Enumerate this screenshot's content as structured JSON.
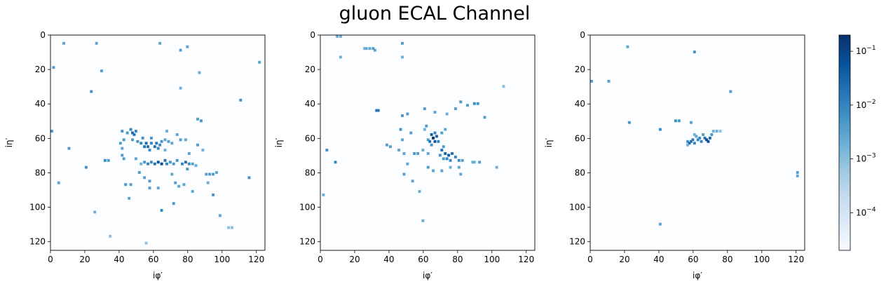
{
  "chart_data": {
    "type": "heatmap",
    "title": "gluon ECAL Channel",
    "cmap": "Blues",
    "colorbar": {
      "scale": "log",
      "range": [
        2e-05,
        0.2
      ],
      "tick_labels": [
        "10^-4",
        "10^-3",
        "10^-2",
        "10^-1"
      ],
      "tick_values": [
        0.0001,
        0.001,
        0.01,
        0.1
      ]
    },
    "panels": [
      {
        "xlabel": "iφ′",
        "ylabel": "iη′",
        "xlim": [
          0,
          125
        ],
        "ylim": [
          125,
          0
        ],
        "xticks": [
          0,
          20,
          40,
          60,
          80,
          100,
          120
        ],
        "yticks": [
          0,
          20,
          40,
          60,
          80,
          100,
          120
        ],
        "points": [
          [
            7,
            4,
            0.003
          ],
          [
            26,
            4,
            0.003
          ],
          [
            63,
            4,
            0.003
          ],
          [
            75,
            8,
            0.004
          ],
          [
            79,
            6,
            0.003
          ],
          [
            121,
            15,
            0.003
          ],
          [
            1,
            18,
            0.004
          ],
          [
            29,
            20,
            0.004
          ],
          [
            86,
            21,
            0.002
          ],
          [
            23,
            32,
            0.006
          ],
          [
            75,
            30,
            0.002
          ],
          [
            110,
            37,
            0.006
          ],
          [
            0,
            55,
            0.005
          ],
          [
            4,
            85,
            0.003
          ],
          [
            10,
            65,
            0.005
          ],
          [
            20,
            76,
            0.006
          ],
          [
            25,
            102,
            0.002
          ],
          [
            31,
            72,
            0.008
          ],
          [
            33,
            72,
            0.005
          ],
          [
            34,
            116,
            0.001
          ],
          [
            55,
            120,
            0.001
          ],
          [
            103,
            111,
            0.001
          ],
          [
            105,
            111,
            0.001
          ],
          [
            41,
            55,
            0.006
          ],
          [
            42,
            60,
            0.004
          ],
          [
            40,
            62,
            0.004
          ],
          [
            41,
            65,
            0.003
          ],
          [
            41,
            69,
            0.005
          ],
          [
            42,
            71,
            0.004
          ],
          [
            44,
            56,
            0.005
          ],
          [
            46,
            54,
            0.01
          ],
          [
            47,
            56,
            0.03
          ],
          [
            48,
            57,
            0.02
          ],
          [
            49,
            55,
            0.01
          ],
          [
            47,
            60,
            0.005
          ],
          [
            50,
            61,
            0.006
          ],
          [
            52,
            62,
            0.01
          ],
          [
            53,
            59,
            0.006
          ],
          [
            54,
            64,
            0.02
          ],
          [
            55,
            62,
            0.03
          ],
          [
            56,
            64,
            0.02
          ],
          [
            57,
            66,
            0.008
          ],
          [
            58,
            62,
            0.01
          ],
          [
            60,
            64,
            0.02
          ],
          [
            61,
            62,
            0.015
          ],
          [
            62,
            65,
            0.01
          ],
          [
            63,
            63,
            0.008
          ],
          [
            64,
            61,
            0.006
          ],
          [
            58,
            59,
            0.005
          ],
          [
            66,
            60,
            0.003
          ],
          [
            68,
            61,
            0.004
          ],
          [
            70,
            62,
            0.003
          ],
          [
            66,
            66,
            0.002
          ],
          [
            67,
            55,
            0.002
          ],
          [
            73,
            57,
            0.003
          ],
          [
            75,
            60,
            0.004
          ],
          [
            78,
            60,
            0.003
          ],
          [
            85,
            48,
            0.004
          ],
          [
            87,
            49,
            0.006
          ],
          [
            85,
            63,
            0.004
          ],
          [
            88,
            66,
            0.002
          ],
          [
            80,
            68,
            0.003
          ],
          [
            54,
            73,
            0.006
          ],
          [
            56,
            74,
            0.01
          ],
          [
            58,
            73,
            0.008
          ],
          [
            60,
            74,
            0.02
          ],
          [
            62,
            73,
            0.06
          ],
          [
            64,
            74,
            0.08
          ],
          [
            66,
            72,
            0.02
          ],
          [
            67,
            74,
            0.01
          ],
          [
            69,
            73,
            0.006
          ],
          [
            71,
            74,
            0.005
          ],
          [
            73,
            72,
            0.006
          ],
          [
            76,
            74,
            0.01
          ],
          [
            78,
            73,
            0.02
          ],
          [
            80,
            74,
            0.008
          ],
          [
            82,
            74,
            0.004
          ],
          [
            84,
            75,
            0.002
          ],
          [
            79,
            77,
            0.005
          ],
          [
            49,
            71,
            0.003
          ],
          [
            52,
            74,
            0.002
          ],
          [
            54,
            82,
            0.004
          ],
          [
            57,
            84,
            0.004
          ],
          [
            57,
            88,
            0.004
          ],
          [
            62,
            88,
            0.003
          ],
          [
            64,
            101,
            0.008
          ],
          [
            71,
            97,
            0.005
          ],
          [
            77,
            86,
            0.003
          ],
          [
            74,
            87,
            0.003
          ],
          [
            72,
            85,
            0.004
          ],
          [
            46,
            86,
            0.004
          ],
          [
            43,
            86,
            0.005
          ],
          [
            45,
            94,
            0.003
          ],
          [
            51,
            79,
            0.004
          ],
          [
            70,
            80,
            0.003
          ],
          [
            82,
            90,
            0.003
          ],
          [
            90,
            80,
            0.004
          ],
          [
            92,
            80,
            0.004
          ],
          [
            94,
            80,
            0.004
          ],
          [
            96,
            79,
            0.003
          ],
          [
            94,
            92,
            0.005
          ],
          [
            98,
            104,
            0.003
          ],
          [
            115,
            82,
            0.006
          ],
          [
            91,
            85,
            0.002
          ]
        ]
      },
      {
        "xlabel": "iφ′",
        "ylabel": "iη′",
        "xlim": [
          0,
          125
        ],
        "ylim": [
          125,
          0
        ],
        "xticks": [
          0,
          20,
          40,
          60,
          80,
          100,
          120
        ],
        "yticks": [
          0,
          20,
          40,
          60,
          80,
          100,
          120
        ],
        "points": [
          [
            9,
            0,
            0.002
          ],
          [
            11,
            0,
            0.002
          ],
          [
            26,
            7,
            0.003
          ],
          [
            28,
            7,
            0.003
          ],
          [
            30,
            7,
            0.004
          ],
          [
            31,
            8,
            0.003
          ],
          [
            25,
            7,
            0.002
          ],
          [
            47,
            4,
            0.004
          ],
          [
            11,
            12,
            0.002
          ],
          [
            47,
            12,
            0.002
          ],
          [
            106,
            29,
            0.001
          ],
          [
            32,
            43,
            0.02
          ],
          [
            33,
            43,
            0.015
          ],
          [
            47,
            46,
            0.005
          ],
          [
            50,
            45,
            0.004
          ],
          [
            60,
            42,
            0.004
          ],
          [
            66,
            44,
            0.003
          ],
          [
            73,
            45,
            0.002
          ],
          [
            78,
            42,
            0.004
          ],
          [
            81,
            38,
            0.005
          ],
          [
            85,
            40,
            0.004
          ],
          [
            89,
            39,
            0.008
          ],
          [
            91,
            39,
            0.006
          ],
          [
            95,
            47,
            0.004
          ],
          [
            38,
            63,
            0.004
          ],
          [
            46,
            54,
            0.006
          ],
          [
            47,
            60,
            0.003
          ],
          [
            52,
            56,
            0.004
          ],
          [
            45,
            66,
            0.003
          ],
          [
            48,
            68,
            0.003
          ],
          [
            54,
            68,
            0.005
          ],
          [
            56,
            68,
            0.004
          ],
          [
            50,
            74,
            0.003
          ],
          [
            48,
            80,
            0.004
          ],
          [
            53,
            84,
            0.003
          ],
          [
            57,
            90,
            0.002
          ],
          [
            60,
            54,
            0.002
          ],
          [
            61,
            52,
            0.004
          ],
          [
            62,
            60,
            0.004
          ],
          [
            59,
            66,
            0.002
          ],
          [
            62,
            68,
            0.003
          ],
          [
            64,
            57,
            0.04
          ],
          [
            65,
            59,
            0.2
          ],
          [
            66,
            61,
            0.06
          ],
          [
            67,
            58,
            0.03
          ],
          [
            63,
            61,
            0.02
          ],
          [
            66,
            56,
            0.01
          ],
          [
            68,
            61,
            0.01
          ],
          [
            64,
            63,
            0.006
          ],
          [
            70,
            56,
            0.004
          ],
          [
            72,
            54,
            0.003
          ],
          [
            70,
            66,
            0.02
          ],
          [
            72,
            68,
            0.03
          ],
          [
            74,
            69,
            0.04
          ],
          [
            76,
            68,
            0.02
          ],
          [
            73,
            71,
            0.01
          ],
          [
            78,
            70,
            0.01
          ],
          [
            80,
            72,
            0.008
          ],
          [
            75,
            72,
            0.008
          ],
          [
            71,
            71,
            0.005
          ],
          [
            69,
            69,
            0.006
          ],
          [
            82,
            72,
            0.004
          ],
          [
            71,
            64,
            0.005
          ],
          [
            62,
            76,
            0.004
          ],
          [
            65,
            78,
            0.003
          ],
          [
            70,
            78,
            0.003
          ],
          [
            75,
            76,
            0.002
          ],
          [
            80,
            76,
            0.003
          ],
          [
            81,
            80,
            0.003
          ],
          [
            88,
            73,
            0.002
          ],
          [
            92,
            73,
            0.004
          ],
          [
            102,
            76,
            0.002
          ],
          [
            1,
            92,
            0.002
          ],
          [
            3,
            66,
            0.006
          ],
          [
            8,
            73,
            0.01
          ],
          [
            59,
            107,
            0.002
          ],
          [
            89,
            73,
            0.002
          ],
          [
            40,
            64,
            0.004
          ]
        ]
      },
      {
        "xlabel": "iφ′",
        "ylabel": "iη′",
        "xlim": [
          0,
          125
        ],
        "ylim": [
          125,
          0
        ],
        "xticks": [
          0,
          20,
          40,
          60,
          80,
          100,
          120
        ],
        "yticks": [
          0,
          20,
          40,
          60,
          80,
          100,
          120
        ],
        "points": [
          [
            0,
            26,
            0.004
          ],
          [
            10,
            26,
            0.004
          ],
          [
            21,
            6,
            0.003
          ],
          [
            60,
            9,
            0.006
          ],
          [
            22,
            50,
            0.006
          ],
          [
            40,
            54,
            0.008
          ],
          [
            49,
            49,
            0.008
          ],
          [
            51,
            49,
            0.006
          ],
          [
            58,
            50,
            0.003
          ],
          [
            81,
            32,
            0.004
          ],
          [
            56,
            61,
            0.006
          ],
          [
            57,
            62,
            0.03
          ],
          [
            58,
            61,
            0.02
          ],
          [
            59,
            60,
            0.015
          ],
          [
            60,
            62,
            0.01
          ],
          [
            62,
            60,
            0.01
          ],
          [
            63,
            59,
            0.008
          ],
          [
            64,
            61,
            0.01
          ],
          [
            66,
            59,
            0.02
          ],
          [
            67,
            60,
            0.08
          ],
          [
            68,
            61,
            0.06
          ],
          [
            69,
            59,
            0.03
          ],
          [
            70,
            57,
            0.005
          ],
          [
            71,
            55,
            0.002
          ],
          [
            73,
            55,
            0.002
          ],
          [
            75,
            55,
            0.001
          ],
          [
            65,
            57,
            0.004
          ],
          [
            61,
            58,
            0.003
          ],
          [
            60,
            57,
            0.002
          ],
          [
            56,
            63,
            0.002
          ],
          [
            40,
            109,
            0.003
          ],
          [
            120,
            79,
            0.004
          ],
          [
            120,
            81,
            0.003
          ]
        ]
      }
    ]
  }
}
